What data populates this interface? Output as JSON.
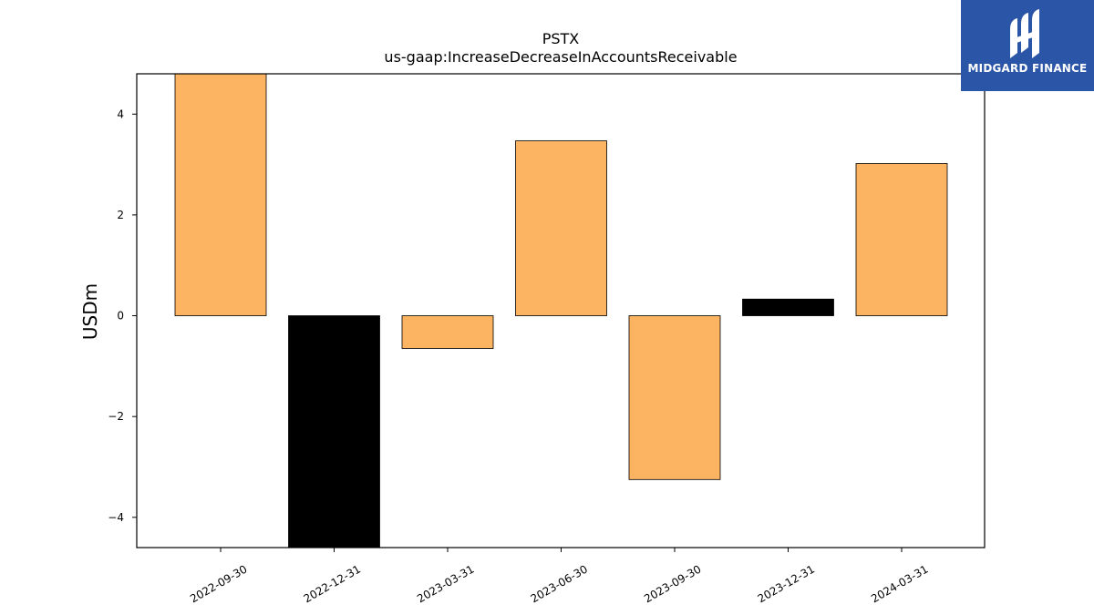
{
  "chart_data": {
    "type": "bar",
    "title": "PSTX",
    "subtitle": "us-gaap:IncreaseDecreaseInAccountsReceivable",
    "ylabel": "USDm",
    "xlabel": "",
    "categories": [
      "2022-09-30",
      "2022-12-31",
      "2023-03-31",
      "2023-06-30",
      "2023-09-30",
      "2023-12-31",
      "2024-03-31"
    ],
    "values": [
      4.9,
      -4.6,
      -0.65,
      3.47,
      -3.25,
      0.33,
      3.02
    ],
    "bar_colors": [
      "#fdb462",
      "#000000",
      "#fdb462",
      "#fdb462",
      "#fdb462",
      "#000000",
      "#fdb462"
    ],
    "ylim": [
      -4.6,
      4.8
    ],
    "yticks": [
      -4,
      -2,
      0,
      2,
      4
    ],
    "ytick_labels": [
      "−4",
      "−2",
      "0",
      "2",
      "4"
    ],
    "grid": false
  },
  "logo": {
    "text": "MIDGARD FINANCE",
    "icon": "midgard-logo-icon",
    "background": "#2b55a7"
  }
}
